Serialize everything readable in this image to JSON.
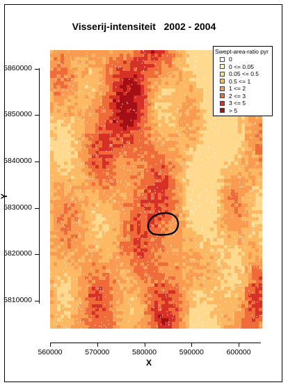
{
  "title": "Visserij-intensiteit   2002 - 2004",
  "axes": {
    "x_title": "X",
    "y_title": "Y",
    "x_ticks": [
      "560000",
      "570000",
      "580000",
      "590000",
      "600000"
    ],
    "y_ticks": [
      "5860000",
      "5850000",
      "5840000",
      "5830000",
      "5820000",
      "5810000"
    ]
  },
  "legend": {
    "title": "Swept-area-ratio pyr",
    "items": [
      {
        "label": "0",
        "color": "#ffffff"
      },
      {
        "label": "0 <= 0.05",
        "color": "#fff7bc"
      },
      {
        "label": "0.05 <= 0.5",
        "color": "#fed98e"
      },
      {
        "label": "0.5 <= 1",
        "color": "#fdb863"
      },
      {
        "label": "1 <= 2",
        "color": "#f99b50"
      },
      {
        "label": "2 <= 3",
        "color": "#ef6b3a"
      },
      {
        "label": "3 <= 5",
        "color": "#d73027"
      },
      {
        "label": "> 5",
        "color": "#a50f15"
      }
    ]
  },
  "chart_data": {
    "type": "heatmap",
    "title": "Visserij-intensiteit   2002 - 2004",
    "xlabel": "X",
    "ylabel": "Y",
    "xlim": [
      560000,
      605000
    ],
    "ylim": [
      5804000,
      5864000
    ],
    "colorscale_labels": [
      "0",
      "0 <= 0.05",
      "0.05 <= 0.5",
      "0.5 <= 1",
      "1 <= 2",
      "2 <= 3",
      "3 <= 5",
      "> 5"
    ],
    "highlight_region": "closed black outline near x 580000-585000, y 5825000-5829500"
  }
}
